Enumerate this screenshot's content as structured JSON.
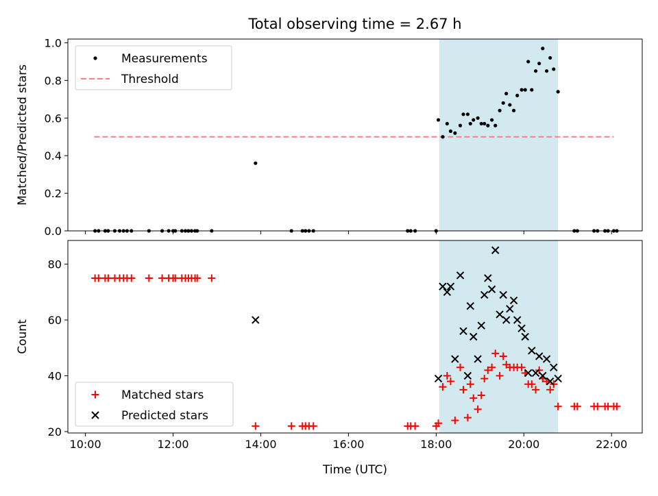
{
  "chart_data": {
    "title": "Total observing time = 2.67 h",
    "xlabel": "Time (UTC)",
    "x_ticks": [
      "10:00",
      "12:00",
      "14:00",
      "16:00",
      "18:00",
      "20:00",
      "22:00"
    ],
    "x_tick_hours": [
      10,
      12,
      14,
      16,
      18,
      20,
      22
    ],
    "xlim_hours": [
      9.6,
      22.7
    ],
    "observing_window_hours": [
      18.07,
      20.78
    ],
    "window_color": "#d3e9f0",
    "panels": [
      {
        "id": "ratio",
        "type": "scatter",
        "ylabel": "Matched/Predicted stars",
        "ylim": [
          0,
          1.02
        ],
        "y_ticks": [
          "0.0",
          "0.2",
          "0.4",
          "0.6",
          "0.8",
          "1.0"
        ],
        "y_tick_values": [
          0,
          0.2,
          0.4,
          0.6,
          0.8,
          1.0
        ],
        "legend": {
          "position": "top-left",
          "entries": [
            "Measurements",
            "Threshold"
          ]
        },
        "threshold": {
          "name": "Threshold",
          "value": 0.5,
          "x_range": [
            10.2,
            22.05
          ],
          "color": "#ff8080"
        },
        "series": [
          {
            "name": "Measurements",
            "marker": "dot",
            "color": "#000000",
            "points": [
              [
                10.22,
                0
              ],
              [
                10.3,
                0
              ],
              [
                10.45,
                0
              ],
              [
                10.52,
                0
              ],
              [
                10.67,
                0
              ],
              [
                10.78,
                0
              ],
              [
                10.87,
                0
              ],
              [
                10.95,
                0
              ],
              [
                11.05,
                0
              ],
              [
                11.45,
                0
              ],
              [
                11.75,
                0
              ],
              [
                11.9,
                0
              ],
              [
                12.0,
                0
              ],
              [
                12.05,
                0
              ],
              [
                12.2,
                0
              ],
              [
                12.28,
                0
              ],
              [
                12.35,
                0
              ],
              [
                12.42,
                0
              ],
              [
                12.5,
                0
              ],
              [
                12.55,
                0
              ],
              [
                12.88,
                0
              ],
              [
                13.88,
                0.36
              ],
              [
                14.7,
                0
              ],
              [
                14.95,
                0
              ],
              [
                15.02,
                0
              ],
              [
                15.1,
                0
              ],
              [
                15.2,
                0
              ],
              [
                17.35,
                0
              ],
              [
                17.42,
                0
              ],
              [
                17.52,
                0
              ],
              [
                18.0,
                0
              ],
              [
                18.05,
                0.59
              ],
              [
                18.15,
                0.5
              ],
              [
                18.25,
                0.57
              ],
              [
                18.33,
                0.53
              ],
              [
                18.43,
                0.52
              ],
              [
                18.55,
                0.56
              ],
              [
                18.62,
                0.62
              ],
              [
                18.72,
                0.62
              ],
              [
                18.78,
                0.57
              ],
              [
                18.85,
                0.59
              ],
              [
                18.95,
                0.6
              ],
              [
                19.03,
                0.57
              ],
              [
                19.1,
                0.57
              ],
              [
                19.18,
                0.56
              ],
              [
                19.27,
                0.59
              ],
              [
                19.35,
                0.56
              ],
              [
                19.45,
                0.64
              ],
              [
                19.53,
                0.68
              ],
              [
                19.6,
                0.73
              ],
              [
                19.68,
                0.67
              ],
              [
                19.77,
                0.64
              ],
              [
                19.85,
                0.72
              ],
              [
                19.95,
                0.75
              ],
              [
                20.03,
                0.75
              ],
              [
                20.1,
                0.9
              ],
              [
                20.18,
                0.75
              ],
              [
                20.27,
                0.85
              ],
              [
                20.35,
                0.89
              ],
              [
                20.43,
                0.97
              ],
              [
                20.52,
                0.85
              ],
              [
                20.6,
                0.92
              ],
              [
                20.68,
                0.86
              ],
              [
                20.78,
                0.74
              ],
              [
                21.15,
                0
              ],
              [
                21.22,
                0
              ],
              [
                21.6,
                0
              ],
              [
                21.68,
                0
              ],
              [
                21.85,
                0
              ],
              [
                21.92,
                0
              ],
              [
                22.05,
                0
              ],
              [
                22.12,
                0
              ]
            ]
          }
        ]
      },
      {
        "id": "counts",
        "type": "scatter",
        "ylabel": "Count",
        "ylim": [
          19.5,
          88.5
        ],
        "y_ticks": [
          "20",
          "40",
          "60",
          "80"
        ],
        "y_tick_values": [
          20,
          40,
          60,
          80
        ],
        "legend": {
          "position": "bottom-left",
          "entries": [
            "Matched stars",
            "Predicted stars"
          ]
        },
        "series": [
          {
            "name": "Matched stars",
            "marker": "plus",
            "color": "#ff0000",
            "points": [
              [
                10.22,
                75
              ],
              [
                10.3,
                75
              ],
              [
                10.45,
                75
              ],
              [
                10.52,
                75
              ],
              [
                10.67,
                75
              ],
              [
                10.78,
                75
              ],
              [
                10.87,
                75
              ],
              [
                10.95,
                75
              ],
              [
                11.05,
                75
              ],
              [
                11.45,
                75
              ],
              [
                11.75,
                75
              ],
              [
                11.9,
                75
              ],
              [
                12.0,
                75
              ],
              [
                12.05,
                75
              ],
              [
                12.2,
                75
              ],
              [
                12.28,
                75
              ],
              [
                12.35,
                75
              ],
              [
                12.42,
                75
              ],
              [
                12.5,
                75
              ],
              [
                12.55,
                75
              ],
              [
                12.88,
                75
              ],
              [
                13.88,
                22
              ],
              [
                14.7,
                22
              ],
              [
                14.95,
                22
              ],
              [
                15.02,
                22
              ],
              [
                15.1,
                22
              ],
              [
                15.2,
                22
              ],
              [
                17.35,
                22
              ],
              [
                17.42,
                22
              ],
              [
                17.52,
                22
              ],
              [
                18.0,
                22
              ],
              [
                18.05,
                23
              ],
              [
                18.15,
                36
              ],
              [
                18.25,
                40
              ],
              [
                18.33,
                38
              ],
              [
                18.43,
                24
              ],
              [
                18.55,
                43
              ],
              [
                18.62,
                35
              ],
              [
                18.72,
                25
              ],
              [
                18.78,
                37
              ],
              [
                18.85,
                32
              ],
              [
                18.95,
                28
              ],
              [
                19.03,
                33
              ],
              [
                19.1,
                39
              ],
              [
                19.18,
                42
              ],
              [
                19.27,
                43
              ],
              [
                19.35,
                48
              ],
              [
                19.45,
                40
              ],
              [
                19.53,
                47
              ],
              [
                19.6,
                44
              ],
              [
                19.68,
                43
              ],
              [
                19.77,
                43
              ],
              [
                19.85,
                43
              ],
              [
                19.95,
                43
              ],
              [
                20.03,
                41
              ],
              [
                20.1,
                37
              ],
              [
                20.18,
                37
              ],
              [
                20.27,
                35
              ],
              [
                20.35,
                42
              ],
              [
                20.43,
                39
              ],
              [
                20.52,
                38
              ],
              [
                20.6,
                35
              ],
              [
                20.68,
                37
              ],
              [
                20.78,
                29
              ],
              [
                21.15,
                29
              ],
              [
                21.22,
                29
              ],
              [
                21.6,
                29
              ],
              [
                21.68,
                29
              ],
              [
                21.85,
                29
              ],
              [
                21.92,
                29
              ],
              [
                22.05,
                29
              ],
              [
                22.12,
                29
              ]
            ]
          },
          {
            "name": "Predicted stars",
            "marker": "x",
            "color": "#000000",
            "points": [
              [
                13.88,
                60
              ],
              [
                18.05,
                39
              ],
              [
                18.15,
                72
              ],
              [
                18.25,
                70
              ],
              [
                18.33,
                72
              ],
              [
                18.43,
                46
              ],
              [
                18.55,
                76
              ],
              [
                18.62,
                56
              ],
              [
                18.72,
                40
              ],
              [
                18.78,
                65
              ],
              [
                18.85,
                54
              ],
              [
                18.95,
                46
              ],
              [
                19.03,
                58
              ],
              [
                19.1,
                69
              ],
              [
                19.18,
                75
              ],
              [
                19.27,
                71
              ],
              [
                19.35,
                85
              ],
              [
                19.45,
                62
              ],
              [
                19.53,
                69
              ],
              [
                19.6,
                60
              ],
              [
                19.68,
                64
              ],
              [
                19.77,
                67
              ],
              [
                19.85,
                60
              ],
              [
                19.95,
                57
              ],
              [
                20.03,
                54
              ],
              [
                20.1,
                41
              ],
              [
                20.18,
                49
              ],
              [
                20.27,
                41
              ],
              [
                20.35,
                47
              ],
              [
                20.43,
                40
              ],
              [
                20.52,
                46
              ],
              [
                20.6,
                38
              ],
              [
                20.68,
                43
              ],
              [
                20.78,
                39
              ]
            ]
          }
        ]
      }
    ]
  }
}
